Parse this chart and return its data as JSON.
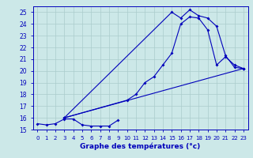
{
  "xlabel": "Graphe des températures (°c)",
  "bg_color": "#cce8e8",
  "grid_color": "#aacccc",
  "line_color": "#0000bb",
  "xlim": [
    -0.5,
    23.5
  ],
  "ylim": [
    15.0,
    25.5
  ],
  "yticks": [
    15,
    16,
    17,
    18,
    19,
    20,
    21,
    22,
    23,
    24,
    25
  ],
  "xticks": [
    0,
    1,
    2,
    3,
    4,
    5,
    6,
    7,
    8,
    9,
    10,
    11,
    12,
    13,
    14,
    15,
    16,
    17,
    18,
    19,
    20,
    21,
    22,
    23
  ],
  "series": [
    {
      "x": [
        0,
        1,
        2,
        3,
        4,
        5,
        6,
        7,
        8,
        9
      ],
      "y": [
        15.5,
        15.4,
        15.5,
        15.9,
        15.9,
        15.4,
        15.3,
        15.3,
        15.3,
        15.8
      ]
    },
    {
      "x": [
        3,
        10,
        11,
        12,
        13,
        14,
        15,
        16,
        17,
        18,
        19,
        20,
        21,
        22,
        23
      ],
      "y": [
        16.0,
        17.5,
        18.0,
        19.0,
        19.5,
        20.5,
        21.5,
        24.0,
        24.6,
        24.5,
        23.5,
        20.5,
        21.2,
        20.5,
        20.2
      ]
    },
    {
      "x": [
        3,
        15,
        16,
        17,
        18,
        19,
        20,
        21,
        22,
        23
      ],
      "y": [
        16.0,
        25.0,
        24.5,
        25.2,
        24.7,
        24.5,
        23.8,
        21.3,
        20.3,
        20.2
      ]
    },
    {
      "x": [
        3,
        23
      ],
      "y": [
        16.0,
        20.2
      ]
    }
  ]
}
